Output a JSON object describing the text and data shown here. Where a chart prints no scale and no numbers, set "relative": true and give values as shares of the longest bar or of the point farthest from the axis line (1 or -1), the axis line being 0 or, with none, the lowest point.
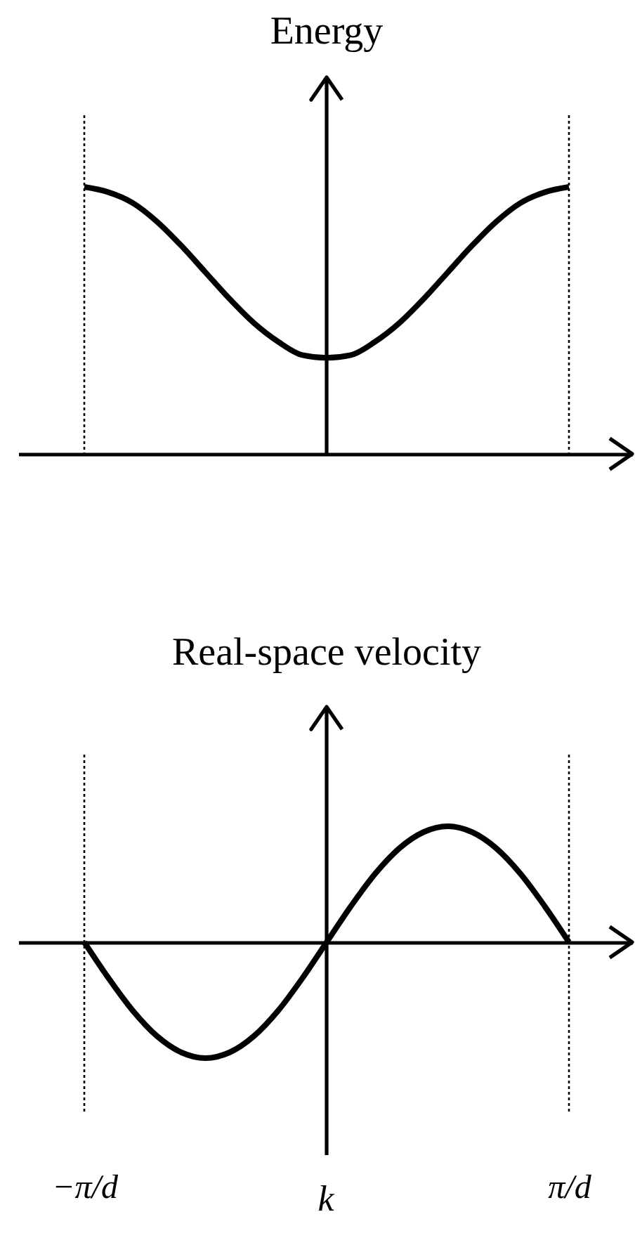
{
  "chart_data": [
    {
      "type": "line",
      "ylabel": "Energy",
      "relative": true,
      "tick_labels": false,
      "categories": [
        "−π/d",
        null,
        null,
        null,
        null,
        null,
        null,
        null,
        null,
        null,
        null,
        null,
        null,
        null,
        null,
        null,
        null,
        null,
        null,
        null,
        "π/d"
      ],
      "series": [
        {
          "color": "#000000",
          "values": [
            1.0,
            0.98,
            0.94,
            0.87,
            0.78,
            0.68,
            0.58,
            0.49,
            0.42,
            0.37,
            0.36,
            0.37,
            0.42,
            0.49,
            0.58,
            0.68,
            0.78,
            0.87,
            0.94,
            0.98,
            1.0
          ]
        }
      ],
      "ref_lines": [
        {
          "axis": "x",
          "value": "−π/d",
          "color": "#000000",
          "line_style": "dotted"
        },
        {
          "axis": "x",
          "value": "π/d",
          "color": "#000000",
          "line_style": "dotted"
        }
      ]
    },
    {
      "type": "line",
      "ylabel": "Real-space velocity",
      "xlabel": "k",
      "relative": true,
      "tick_labels": "x",
      "categories": [
        "−π/d",
        null,
        null,
        null,
        null,
        null,
        null,
        null,
        null,
        null,
        null,
        null,
        null,
        null,
        null,
        null,
        null,
        null,
        null,
        null,
        "π/d"
      ],
      "series": [
        {
          "color": "#000000",
          "values": [
            0,
            -0.31,
            -0.59,
            -0.81,
            -0.95,
            -1,
            -0.95,
            -0.81,
            -0.59,
            -0.31,
            0,
            0.31,
            0.59,
            0.81,
            0.95,
            1,
            0.95,
            0.81,
            0.59,
            0.31,
            0
          ]
        }
      ],
      "ref_lines": [
        {
          "axis": "x",
          "value": "−π/d",
          "color": "#000000",
          "line_style": "dotted"
        },
        {
          "axis": "x",
          "value": "π/d",
          "color": "#000000",
          "line_style": "dotted"
        }
      ]
    }
  ]
}
